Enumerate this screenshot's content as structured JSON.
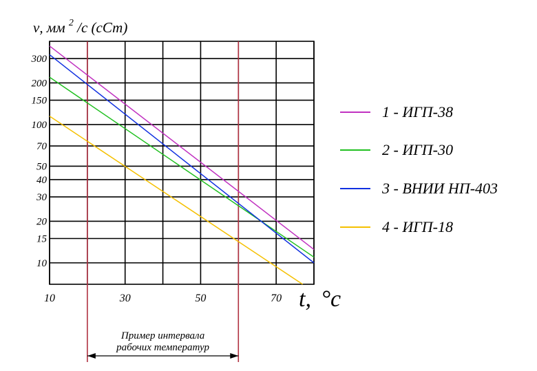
{
  "chart_data": {
    "type": "line",
    "y_scale": "log",
    "y_title": {
      "symbol": "ν, мм",
      "sup": "2",
      "unit": "/с (сСт)"
    },
    "x_title": {
      "symbol": "t,",
      "unit": "°с"
    },
    "xlim": [
      10,
      80
    ],
    "ylim": [
      7,
      400
    ],
    "x_gridlines": [
      10,
      20,
      30,
      40,
      50,
      60,
      70,
      80
    ],
    "y_gridlines": [
      10,
      15,
      20,
      30,
      40,
      50,
      70,
      100,
      150,
      200,
      300
    ],
    "x_ticks": [
      "10",
      "30",
      "50",
      "70"
    ],
    "y_ticks": [
      "300",
      "200",
      "150",
      "100",
      "70",
      "50",
      "40",
      "30",
      "20",
      "15",
      "10"
    ],
    "grid": true,
    "legend_position": "right",
    "series": [
      {
        "name": "1 - ИГП-38",
        "color": "#c030c0",
        "x": [
          10,
          80
        ],
        "y": [
          370,
          12.5
        ]
      },
      {
        "name": "2 - ИГП-30",
        "color": "#20c020",
        "x": [
          10,
          80
        ],
        "y": [
          220,
          11
        ]
      },
      {
        "name": "3 - ВНИИ НП-403",
        "color": "#1030e0",
        "x": [
          10,
          80
        ],
        "y": [
          320,
          10
        ]
      },
      {
        "name": "4 - ИГП-18",
        "color": "#f5c000",
        "x": [
          10,
          77
        ],
        "y": [
          115,
          7
        ]
      }
    ],
    "working_interval": {
      "x": [
        20,
        60
      ],
      "label_lines": [
        "Пример интервала",
        "рабочих температур"
      ],
      "color": "#b03040"
    }
  }
}
